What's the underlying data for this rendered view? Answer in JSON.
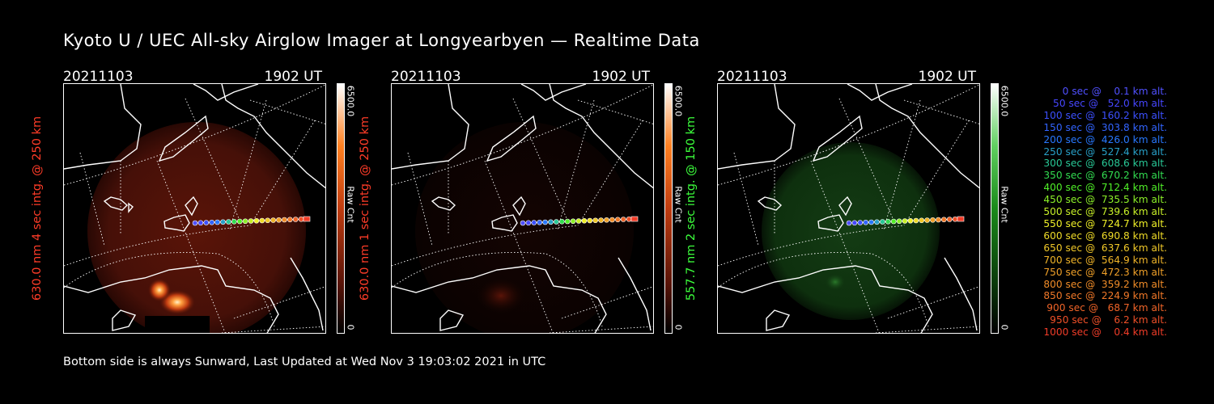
{
  "title": "Kyoto U / UEC All-sky Airglow Imager at Longyearbyen — Realtime Data",
  "footer": "Bottom side is always Sunward, Last Updated at Wed Nov  3 19:03:02 2021 in UTC",
  "panels": [
    {
      "date": "20211103",
      "time": "1902 UT",
      "ylabel": "630.0 nm 4 sec intg. @ 250 km",
      "label_color": "#ff3c28",
      "cbar_max": "6500.0",
      "cbar_unit": "Raw Cnt",
      "cbar_min": "0",
      "cbar_color": "#ff6a00"
    },
    {
      "date": "20211103",
      "time": "1902 UT",
      "ylabel": "630.0 nm 1 sec intg. @ 250 km",
      "label_color": "#ff3c28",
      "cbar_max": "6500.0",
      "cbar_unit": "Raw Cnt",
      "cbar_min": "0",
      "cbar_color": "#ff6a00"
    },
    {
      "date": "20211103",
      "time": "1902 UT",
      "ylabel": "557.7 nm 2 sec intg. @ 150 km",
      "label_color": "#3cff3c",
      "cbar_max": "6500.0",
      "cbar_unit": "Raw Cnt",
      "cbar_min": "0",
      "cbar_color": "#00c000"
    }
  ],
  "legend": [
    {
      "text": "   0 sec @    0.1 km alt.",
      "color": "#5050ff"
    },
    {
      "text": "  50 sec @   52.0 km alt.",
      "color": "#4646ff"
    },
    {
      "text": " 100 sec @  160.2 km alt.",
      "color": "#3c50ff"
    },
    {
      "text": " 150 sec @  303.8 km alt.",
      "color": "#3264ff"
    },
    {
      "text": " 200 sec @  426.0 km alt.",
      "color": "#2878ff"
    },
    {
      "text": " 250 sec @  527.4 km alt.",
      "color": "#28a0c8"
    },
    {
      "text": " 300 sec @  608.6 km alt.",
      "color": "#28c896"
    },
    {
      "text": " 350 sec @  670.2 km alt.",
      "color": "#32dc50"
    },
    {
      "text": " 400 sec @  712.4 km alt.",
      "color": "#50f028"
    },
    {
      "text": " 450 sec @  735.5 km alt.",
      "color": "#8cf028"
    },
    {
      "text": " 500 sec @  739.6 km alt.",
      "color": "#c8f028"
    },
    {
      "text": " 550 sec @  724.7 km alt.",
      "color": "#f0f028"
    },
    {
      "text": " 600 sec @  690.8 km alt.",
      "color": "#f0dc28"
    },
    {
      "text": " 650 sec @  637.6 km alt.",
      "color": "#f0c828"
    },
    {
      "text": " 700 sec @  564.9 km alt.",
      "color": "#f0b428"
    },
    {
      "text": " 750 sec @  472.3 km alt.",
      "color": "#f0a028"
    },
    {
      "text": " 800 sec @  359.2 km alt.",
      "color": "#f08c28"
    },
    {
      "text": " 850 sec @  224.9 km alt.",
      "color": "#f07828"
    },
    {
      "text": " 900 sec @   68.7 km alt.",
      "color": "#f06428"
    },
    {
      "text": " 950 sec @    6.2 km alt.",
      "color": "#f05028"
    },
    {
      "text": "1000 sec @    0.4 km alt.",
      "color": "#f03c28"
    }
  ]
}
